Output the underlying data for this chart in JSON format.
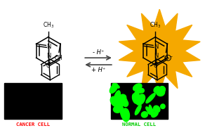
{
  "bg_color": "#ffffff",
  "arrow_color": "#444444",
  "star_color": "#f5a800",
  "cancer_cell_color": "#000000",
  "normal_cell_color": "#00ff00",
  "cancer_label_color": "#ff0000",
  "normal_label_color": "#00cc00",
  "cancer_label": "CANCER CELL",
  "normal_label": "NORMAL CELL",
  "minus_h": "- H⁺",
  "plus_h": "+ H⁺"
}
